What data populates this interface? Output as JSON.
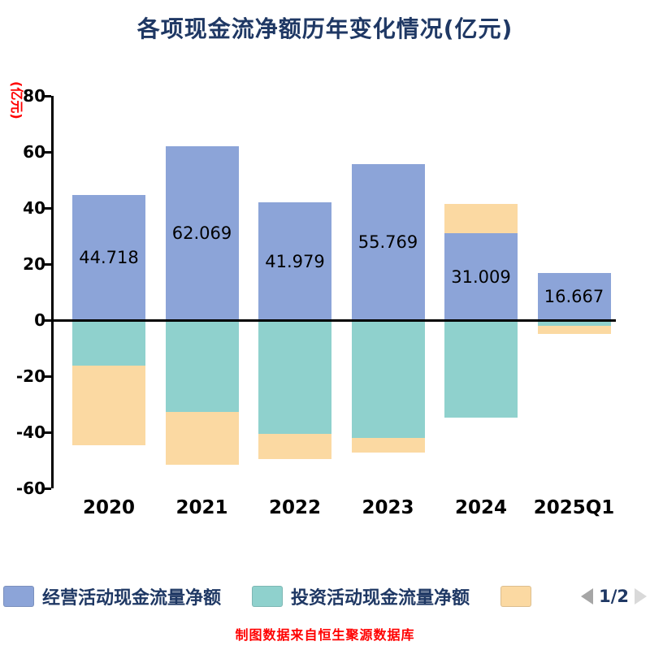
{
  "title": "各项现金流净额历年变化情况(亿元)",
  "footer": "制图数据来自恒生聚源数据库",
  "legend": {
    "items": [
      {
        "label": "经营活动现金流量净额",
        "color": "#8CA4D8"
      },
      {
        "label": "投资活动现金流量净额",
        "color": "#8FD1CD"
      },
      {
        "label": "",
        "color": "#FBD9A2"
      }
    ],
    "pagination": {
      "page": "1/2",
      "prev_color": "#A6A6A6",
      "next_color": "#D9D9D9"
    }
  },
  "chart_data": {
    "type": "bar",
    "stacked": true,
    "title": "各项现金流净额历年变化情况(亿元)",
    "ylabel": "(亿元)",
    "xlabel": "",
    "categories": [
      "2020",
      "2021",
      "2022",
      "2023",
      "2024",
      "2025Q1"
    ],
    "series": [
      {
        "name": "经营活动现金流量净额",
        "color": "#8CA4D8",
        "values": [
          44.718,
          62.069,
          41.979,
          55.769,
          31.009,
          16.667
        ],
        "labels": [
          "44.718",
          "62.069",
          "41.979",
          "55.769",
          "31.009",
          "16.667"
        ]
      },
      {
        "name": "投资活动现金流量净额",
        "color": "#8FD1CD",
        "values": [
          -16.2,
          -32.8,
          -40.6,
          -42.0,
          -34.8,
          -2.0
        ]
      },
      {
        "name": "",
        "color": "#FBD9A2",
        "values": [
          -28.3,
          -18.8,
          -9.0,
          -5.2,
          10.3,
          -2.8
        ]
      }
    ],
    "ylim": [
      -60,
      80
    ],
    "yticks": [
      80,
      60,
      40,
      20,
      0,
      -20,
      -40,
      -60
    ],
    "grid": false,
    "legend_position": "bottom"
  },
  "colors": {
    "title": "#1F3864",
    "axis_text": "#000000",
    "red_text": "#FF0000"
  }
}
